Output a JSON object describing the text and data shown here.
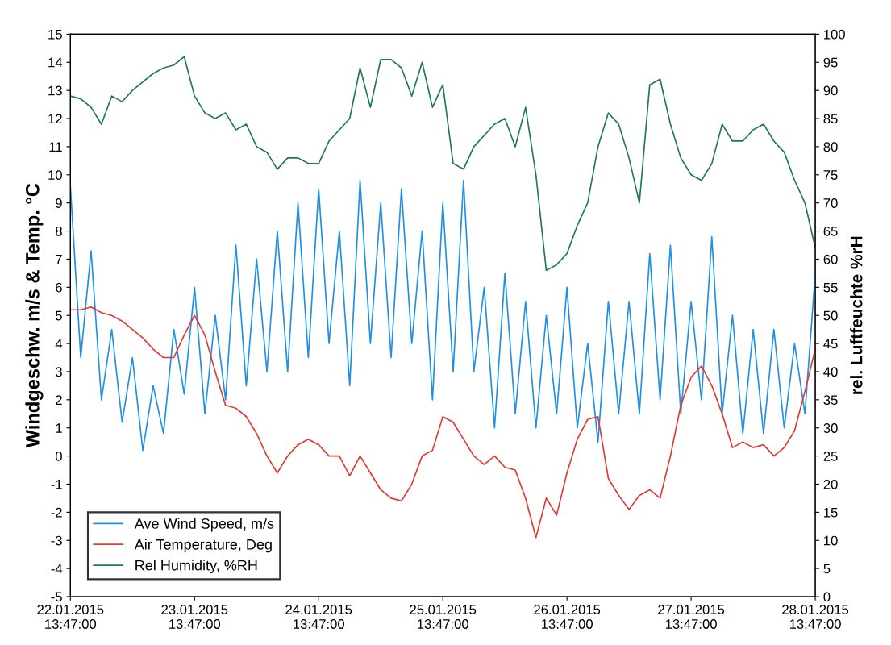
{
  "chart_data": {
    "type": "line",
    "ylabel": "Windgeschw. m/s & Temp. °C",
    "y2label": "rel. Luftfeuchte %rH",
    "x": [
      "2015-01-22T13:47",
      "2015-01-22T15:47",
      "2015-01-22T17:47",
      "2015-01-22T19:47",
      "2015-01-22T21:47",
      "2015-01-22T23:47",
      "2015-01-23T01:47",
      "2015-01-23T03:47",
      "2015-01-23T05:47",
      "2015-01-23T07:47",
      "2015-01-23T09:47",
      "2015-01-23T11:47",
      "2015-01-23T13:47",
      "2015-01-23T15:47",
      "2015-01-23T17:47",
      "2015-01-23T19:47",
      "2015-01-23T21:47",
      "2015-01-23T23:47",
      "2015-01-24T01:47",
      "2015-01-24T03:47",
      "2015-01-24T05:47",
      "2015-01-24T07:47",
      "2015-01-24T09:47",
      "2015-01-24T11:47",
      "2015-01-24T13:47",
      "2015-01-24T15:47",
      "2015-01-24T17:47",
      "2015-01-24T19:47",
      "2015-01-24T21:47",
      "2015-01-24T23:47",
      "2015-01-25T01:47",
      "2015-01-25T03:47",
      "2015-01-25T05:47",
      "2015-01-25T07:47",
      "2015-01-25T09:47",
      "2015-01-25T11:47",
      "2015-01-25T13:47",
      "2015-01-25T15:47",
      "2015-01-25T17:47",
      "2015-01-25T19:47",
      "2015-01-25T21:47",
      "2015-01-25T23:47",
      "2015-01-26T01:47",
      "2015-01-26T03:47",
      "2015-01-26T05:47",
      "2015-01-26T07:47",
      "2015-01-26T09:47",
      "2015-01-26T11:47",
      "2015-01-26T13:47",
      "2015-01-26T15:47",
      "2015-01-26T17:47",
      "2015-01-26T19:47",
      "2015-01-26T21:47",
      "2015-01-26T23:47",
      "2015-01-27T01:47",
      "2015-01-27T03:47",
      "2015-01-27T05:47",
      "2015-01-27T07:47",
      "2015-01-27T09:47",
      "2015-01-27T11:47",
      "2015-01-27T13:47",
      "2015-01-27T15:47",
      "2015-01-27T17:47",
      "2015-01-27T19:47",
      "2015-01-27T21:47",
      "2015-01-27T23:47",
      "2015-01-28T01:47",
      "2015-01-28T03:47",
      "2015-01-28T05:47",
      "2015-01-28T07:47",
      "2015-01-28T09:47",
      "2015-01-28T11:47",
      "2015-01-28T13:47"
    ],
    "series": [
      {
        "name": "Ave Wind Speed, m/s",
        "color": "#1e90e6",
        "values": [
          9.6,
          3.5,
          7.3,
          2.0,
          4.5,
          1.2,
          3.5,
          0.2,
          2.5,
          0.8,
          4.5,
          2.2,
          6.0,
          1.5,
          5.0,
          2.0,
          7.5,
          2.5,
          7.0,
          3.0,
          8.0,
          3.0,
          9.0,
          3.5,
          9.5,
          4.0,
          8.0,
          2.5,
          9.8,
          4.0,
          9.0,
          3.5,
          9.5,
          4.0,
          8.0,
          2.0,
          9.0,
          3.0,
          9.8,
          3.0,
          6.0,
          1.0,
          6.5,
          1.5,
          5.5,
          1.0,
          5.0,
          1.5,
          6.0,
          1.0,
          4.0,
          0.5,
          5.5,
          1.5,
          5.5,
          1.5,
          7.2,
          2.0,
          7.5,
          1.5,
          5.5,
          2.0,
          7.8,
          1.5,
          5.0,
          0.8,
          4.5,
          0.8,
          4.5,
          1.0,
          4.0,
          1.5,
          6.5
        ]
      },
      {
        "name": "Air Temperature, Deg",
        "color": "#e03a32",
        "values": [
          5.2,
          5.2,
          5.3,
          5.1,
          5.0,
          4.8,
          4.5,
          4.2,
          3.8,
          3.5,
          3.5,
          4.3,
          5.0,
          4.3,
          3.0,
          1.8,
          1.7,
          1.4,
          0.8,
          0.0,
          -0.6,
          0.0,
          0.4,
          0.6,
          0.4,
          0.0,
          0.0,
          -0.7,
          0.0,
          -0.6,
          -1.2,
          -1.5,
          -1.6,
          -1.0,
          0.0,
          0.2,
          1.4,
          1.2,
          0.6,
          0.0,
          -0.3,
          0.0,
          -0.4,
          -0.5,
          -1.5,
          -2.9,
          -1.5,
          -2.1,
          -0.6,
          0.6,
          1.3,
          1.4,
          -0.8,
          -1.4,
          -1.9,
          -1.4,
          -1.2,
          -1.5,
          0.0,
          1.8,
          2.8,
          3.2,
          2.5,
          1.5,
          0.3,
          0.5,
          0.3,
          0.4,
          0.0,
          0.3,
          0.9,
          2.3,
          3.8
        ]
      },
      {
        "name": "Rel Humidity, %RH",
        "color": "#1f7a4f",
        "axis": "y2",
        "values": [
          89,
          88.5,
          87,
          84,
          89,
          88,
          90,
          91.5,
          93,
          94,
          94.5,
          96,
          89,
          86,
          85,
          86,
          83,
          84,
          80,
          79,
          76,
          78,
          78,
          77,
          77,
          81,
          83,
          85,
          94,
          87,
          95.5,
          95.5,
          94,
          89,
          95,
          87,
          91,
          77,
          76,
          80,
          82,
          84,
          85,
          80,
          87,
          75,
          58,
          59,
          61,
          66,
          70,
          80,
          86,
          84,
          78,
          70,
          91,
          92,
          84,
          78,
          75,
          74,
          77,
          84,
          81,
          81,
          83,
          84,
          81,
          79,
          74,
          70,
          62
        ]
      }
    ],
    "xlim": [
      "2015-01-22T13:47",
      "2015-01-28T13:47"
    ],
    "xticks": [
      {
        "value": "2015-01-22T13:47",
        "label": "22.01.2015\n13:47:00"
      },
      {
        "value": "2015-01-23T13:47",
        "label": "23.01.2015\n13:47:00"
      },
      {
        "value": "2015-01-24T13:47",
        "label": "24.01.2015\n13:47:00"
      },
      {
        "value": "2015-01-25T13:47",
        "label": "25.01.2015\n13:47:00"
      },
      {
        "value": "2015-01-26T13:47",
        "label": "26.01.2015\n13:47:00"
      },
      {
        "value": "2015-01-27T13:47",
        "label": "27.01.2015\n13:47:00"
      },
      {
        "value": "2015-01-28T13:47",
        "label": "28.01.2015\n13:47:00"
      }
    ],
    "ylim": [
      -5,
      15
    ],
    "yticks": [
      -5,
      -4,
      -3,
      -2,
      -1,
      0,
      1,
      2,
      3,
      4,
      5,
      6,
      7,
      8,
      9,
      10,
      11,
      12,
      13,
      14,
      15
    ],
    "y2lim": [
      0,
      100
    ],
    "y2ticks": [
      0,
      5,
      10,
      15,
      20,
      25,
      30,
      35,
      40,
      45,
      50,
      55,
      60,
      65,
      70,
      75,
      80,
      85,
      90,
      95,
      100
    ],
    "legend": "bottom left",
    "grid": false,
    "marker": "none",
    "line_style": "solid"
  }
}
